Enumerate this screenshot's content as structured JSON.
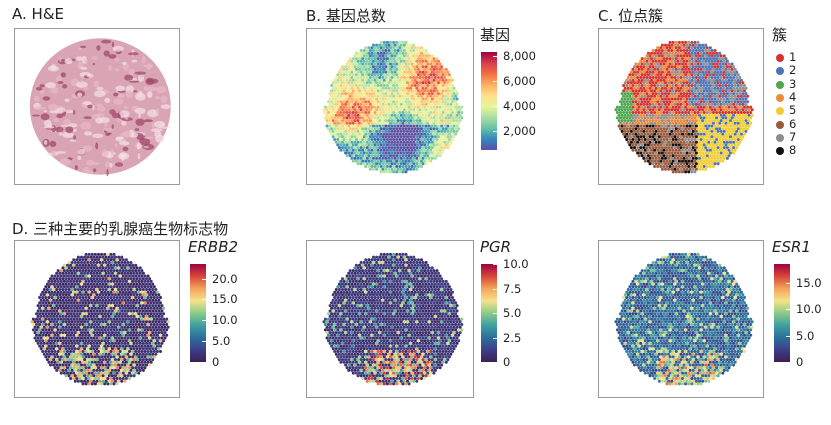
{
  "labels": {
    "a": "A. H&E",
    "b": "B. 基因总数",
    "c": "C. 位点簇",
    "d": "D. 三种主要的乳腺癌生物标志物"
  },
  "chart_data": [
    {
      "type": "heatmap",
      "id": "b",
      "title": "B. 基因总数",
      "colorbar_title": "基因",
      "ticks": [
        "8,000",
        "6,000",
        "4,000",
        "2,000"
      ],
      "tick_values": [
        8000,
        6000,
        4000,
        2000
      ],
      "range": [
        500,
        8300
      ],
      "colors": [
        "#9e0142",
        "#d53e4f",
        "#f46d43",
        "#fdae61",
        "#fee08b",
        "#e6f598",
        "#abdda4",
        "#66c2a5",
        "#3288bd",
        "#5e4fa2"
      ]
    },
    {
      "type": "scatter",
      "id": "c",
      "title": "C. 位点簇",
      "legend_title": "簇",
      "clusters": [
        {
          "name": "1",
          "color": "#d7312f"
        },
        {
          "name": "2",
          "color": "#4a73b8"
        },
        {
          "name": "3",
          "color": "#4ea74d"
        },
        {
          "name": "4",
          "color": "#ee8a38"
        },
        {
          "name": "5",
          "color": "#f2cc33"
        },
        {
          "name": "6",
          "color": "#9a5a3c"
        },
        {
          "name": "7",
          "color": "#8e8e8e"
        },
        {
          "name": "8",
          "color": "#111111"
        }
      ]
    },
    {
      "type": "heatmap",
      "id": "erbb2",
      "colorbar_title": "ERBB2",
      "ticks": [
        "20.0",
        "15.0",
        "10.0",
        "5.0",
        "0"
      ],
      "tick_values": [
        20,
        15,
        10,
        5,
        0
      ],
      "range": [
        0,
        23.5
      ]
    },
    {
      "type": "heatmap",
      "id": "pgr",
      "colorbar_title": "PGR",
      "ticks": [
        "10.0",
        "7.5",
        "5.0",
        "2.5",
        "0"
      ],
      "tick_values": [
        10,
        7.5,
        5,
        2.5,
        0
      ],
      "range": [
        0,
        10
      ]
    },
    {
      "type": "heatmap",
      "id": "esr1",
      "colorbar_title": "ESR1",
      "ticks": [
        "15.0",
        "10.0",
        "5.0",
        "0"
      ],
      "tick_values": [
        15,
        10,
        5,
        0
      ],
      "range": [
        0,
        18.5
      ]
    }
  ],
  "he_colors": {
    "tissue": "#d9a5b5",
    "stroma": "#e8b8c4",
    "dark": "#a04a6e",
    "background": "#ffffff"
  }
}
